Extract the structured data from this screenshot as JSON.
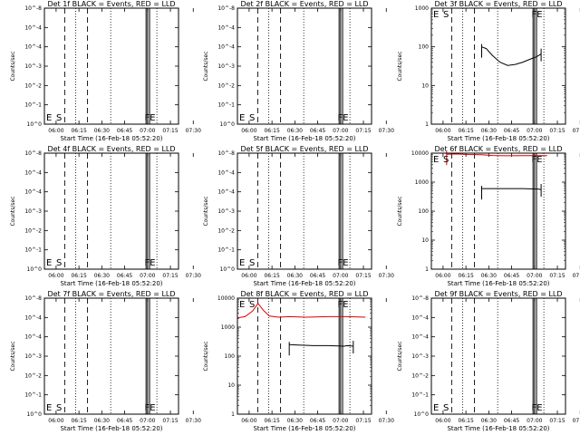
{
  "chart_data": [
    {
      "type": "line",
      "title": "Det 1f BLACK = Events, RED = LLD",
      "xlabel": "Start Time (16-Feb-18 05:52:20)",
      "ylabel": "Counts/sec",
      "x_tick_labels": [
        "06:00",
        "06:15",
        "06:30",
        "06:45",
        "07:00",
        "07:15",
        "07:30"
      ],
      "y_tick_labels": [
        "10^-8",
        "10^-4",
        "10^-4",
        "10^-3",
        "10^-2",
        "10^-1",
        "10^0"
      ],
      "annotations": [
        "E",
        "S",
        "FE"
      ],
      "series": []
    },
    {
      "type": "line",
      "title": "Det 2f BLACK = Events, RED = LLD",
      "xlabel": "Start Time (16-Feb-18 05:52:20)",
      "ylabel": "Counts/sec",
      "x_tick_labels": [
        "06:00",
        "06:15",
        "06:30",
        "06:45",
        "07:00",
        "07:15",
        "07:30"
      ],
      "y_tick_labels": [
        "10^-8",
        "10^-4",
        "10^-4",
        "10^-3",
        "10^-2",
        "10^-1",
        "10^0"
      ],
      "annotations": [
        "E",
        "S",
        "FE"
      ],
      "series": []
    },
    {
      "type": "line",
      "title": "Det 3f BLACK = Events, RED = LLD",
      "xlabel": "Start Time (16-Feb-18 05:52:20)",
      "ylabel": "Counts/sec",
      "x_tick_labels": [
        "06:00",
        "06:15",
        "06:30",
        "06:45",
        "07:00",
        "07:15",
        "07:30"
      ],
      "y_tick_labels": [
        "1000",
        "100",
        "10",
        "1"
      ],
      "annotations": [
        "E",
        "S",
        "FE"
      ],
      "series": [
        {
          "color": "#000000",
          "points": [
            [
              33.0,
              100
            ],
            [
              36.0,
              90
            ],
            [
              40.0,
              60
            ],
            [
              45.0,
              40
            ],
            [
              50.0,
              33
            ],
            [
              55.0,
              35
            ],
            [
              60.0,
              40
            ],
            [
              63.0,
              45
            ],
            [
              66.0,
              50
            ],
            [
              69.0,
              55
            ],
            [
              72.0,
              65
            ]
          ]
        }
      ]
    },
    {
      "type": "line",
      "title": "Det 4f BLACK = Events, RED = LLD",
      "xlabel": "Start Time (16-Feb-18 05:52:20)",
      "ylabel": "Counts/sec",
      "x_tick_labels": [
        "06:00",
        "06:15",
        "06:30",
        "06:45",
        "07:00",
        "07:15",
        "07:30"
      ],
      "y_tick_labels": [
        "10^-8",
        "10^-4",
        "10^-4",
        "10^-3",
        "10^-2",
        "10^-1",
        "10^0"
      ],
      "annotations": [
        "E",
        "S",
        "FE"
      ],
      "series": []
    },
    {
      "type": "line",
      "title": "Det 5f BLACK = Events, RED = LLD",
      "xlabel": "Start Time (16-Feb-18 05:52:20)",
      "ylabel": "Counts/sec",
      "x_tick_labels": [
        "06:00",
        "06:15",
        "06:30",
        "06:45",
        "07:00",
        "07:15",
        "07:30"
      ],
      "y_tick_labels": [
        "10^-8",
        "10^-4",
        "10^-4",
        "10^-3",
        "10^-2",
        "10^-1",
        "10^0"
      ],
      "annotations": [
        "E",
        "S",
        "FE"
      ],
      "series": []
    },
    {
      "type": "line",
      "title": "Det 6f BLACK = Events, RED = LLD",
      "xlabel": "Start Time (16-Feb-18 05:52:20)",
      "ylabel": "Counts/sec",
      "x_tick_labels": [
        "06:00",
        "06:15",
        "06:30",
        "06:45",
        "07:00",
        "07:15",
        "07:30"
      ],
      "y_tick_labels": [
        "10000",
        "1000",
        "100",
        "10",
        "1"
      ],
      "annotations": [
        "E",
        "S",
        "FE"
      ],
      "series": [
        {
          "color": "#dd0000",
          "points": [
            [
              10.0,
              9200
            ],
            [
              16.0,
              9400
            ],
            [
              24.0,
              9000
            ],
            [
              33.0,
              8800
            ],
            [
              40.0,
              8300
            ],
            [
              50.0,
              8100
            ],
            [
              60.0,
              8200
            ],
            [
              72.0,
              8200
            ],
            [
              76.0,
              8200
            ]
          ]
        },
        {
          "color": "#000000",
          "points": [
            [
              33.0,
              600
            ],
            [
              40.0,
              600
            ],
            [
              50.0,
              600
            ],
            [
              60.0,
              600
            ],
            [
              70.0,
              580
            ],
            [
              72.0,
              560
            ]
          ]
        }
      ]
    },
    {
      "type": "line",
      "title": "Det 7f BLACK = Events, RED = LLD",
      "xlabel": "Start Time (16-Feb-18 05:52:20)",
      "ylabel": "Counts/sec",
      "x_tick_labels": [
        "06:00",
        "06:15",
        "06:30",
        "06:45",
        "07:00",
        "07:15",
        "07:30"
      ],
      "y_tick_labels": [
        "10^-8",
        "10^-4",
        "10^-4",
        "10^-3",
        "10^-2",
        "10^-1",
        "10^0"
      ],
      "annotations": [
        "E",
        "S",
        "FE"
      ],
      "series": []
    },
    {
      "type": "line",
      "title": "Det 8f BLACK = Events, RED = LLD",
      "xlabel": "Start Time (16-Feb-18 05:52:20)",
      "ylabel": "Counts/sec",
      "x_tick_labels": [
        "06:00",
        "06:15",
        "06:30",
        "06:45",
        "07:00",
        "07:15",
        "07:30"
      ],
      "y_tick_labels": [
        "10000",
        "1000",
        "100",
        "10",
        "1"
      ],
      "annotations": [
        "E",
        "S",
        "FE"
      ],
      "series": [
        {
          "color": "#dd0000",
          "points": [
            [
              0.0,
              2100
            ],
            [
              5.0,
              2300
            ],
            [
              10.0,
              3600
            ],
            [
              13.5,
              6600
            ],
            [
              17.0,
              3800
            ],
            [
              21.0,
              2400
            ],
            [
              27.0,
              2200
            ],
            [
              34.0,
              2300
            ],
            [
              45.0,
              2200
            ],
            [
              60.0,
              2300
            ],
            [
              72.0,
              2300
            ],
            [
              84.0,
              2200
            ]
          ]
        },
        {
          "color": "#000000",
          "points": [
            [
              34.0,
              250
            ],
            [
              40.0,
              240
            ],
            [
              50.0,
              230
            ],
            [
              60.0,
              230
            ],
            [
              70.0,
              220
            ],
            [
              72.0,
              230
            ],
            [
              76.0,
              220
            ]
          ]
        }
      ]
    },
    {
      "type": "line",
      "title": "Det 9f BLACK = Events, RED = LLD",
      "xlabel": "Start Time (16-Feb-18 05:52:20)",
      "ylabel": "Counts/sec",
      "x_tick_labels": [
        "06:00",
        "06:15",
        "06:30",
        "06:45",
        "07:00",
        "07:15",
        "07:30"
      ],
      "y_tick_labels": [
        "10^-8",
        "10^-4",
        "10^-4",
        "10^-3",
        "10^-2",
        "10^-1",
        "10^0"
      ],
      "annotations": [
        "E",
        "S",
        "FE"
      ],
      "series": []
    }
  ]
}
